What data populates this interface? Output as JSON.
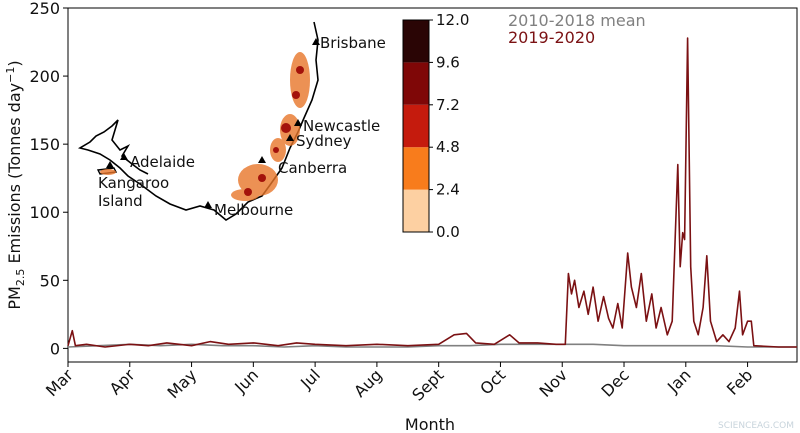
{
  "chart_data": {
    "type": "line",
    "ylabel": [
      "PM",
      "2.5",
      " Emissions (Tonnes day",
      "−1",
      ")"
    ],
    "xlabel": "Month",
    "xlim": [
      0,
      11.8
    ],
    "xticks": [
      {
        "value": 0,
        "label": "Mar"
      },
      {
        "value": 1,
        "label": "Apr"
      },
      {
        "value": 2,
        "label": "May"
      },
      {
        "value": 3,
        "label": "Jun"
      },
      {
        "value": 4,
        "label": "Jul"
      },
      {
        "value": 5,
        "label": "Aug"
      },
      {
        "value": 6,
        "label": "Sept"
      },
      {
        "value": 7,
        "label": "Oct"
      },
      {
        "value": 8,
        "label": "Nov"
      },
      {
        "value": 9,
        "label": "Dec"
      },
      {
        "value": 10,
        "label": "Jan"
      },
      {
        "value": 11,
        "label": "Feb"
      }
    ],
    "ylim": [
      -10,
      250
    ],
    "yticks": [
      0,
      50,
      100,
      150,
      200,
      250
    ],
    "series": [
      {
        "name": "2010-2018 mean",
        "color": "#808080",
        "x": [
          0,
          0.5,
          1,
          1.5,
          2,
          2.5,
          3,
          3.5,
          4,
          4.5,
          5,
          5.5,
          6,
          6.5,
          7,
          7.5,
          8,
          8.5,
          9,
          9.5,
          10,
          10.5,
          11,
          11.4,
          11.8
        ],
        "values": [
          1,
          2,
          3,
          2,
          3,
          2,
          2,
          1,
          2,
          1,
          1,
          1,
          2,
          2,
          3,
          3,
          3,
          3,
          2,
          2,
          2,
          2,
          1,
          1,
          1
        ]
      },
      {
        "name": "2019-2020",
        "color": "#7b1113",
        "x": [
          0,
          0.07,
          0.12,
          0.3,
          0.6,
          1,
          1.3,
          1.6,
          2,
          2.3,
          2.6,
          3,
          3.4,
          3.7,
          4,
          4.5,
          5,
          5.5,
          6,
          6.25,
          6.45,
          6.6,
          6.9,
          7.15,
          7.3,
          7.6,
          7.9,
          8.05,
          8.1,
          8.15,
          8.2,
          8.27,
          8.35,
          8.42,
          8.5,
          8.58,
          8.67,
          8.75,
          8.82,
          8.9,
          8.97,
          9.06,
          9.12,
          9.2,
          9.28,
          9.36,
          9.45,
          9.52,
          9.6,
          9.7,
          9.78,
          9.87,
          9.91,
          9.95,
          9.98,
          10.03,
          10.08,
          10.13,
          10.2,
          10.28,
          10.34,
          10.4,
          10.5,
          10.6,
          10.7,
          10.8,
          10.87,
          10.92,
          11,
          11.06,
          11.1,
          11.5,
          11.8
        ],
        "values": [
          2,
          13,
          2,
          3,
          1,
          3,
          2,
          4,
          2,
          5,
          3,
          4,
          2,
          4,
          3,
          2,
          3,
          2,
          3,
          10,
          11,
          4,
          3,
          10,
          4,
          4,
          3,
          3,
          55,
          40,
          50,
          30,
          42,
          25,
          45,
          20,
          38,
          22,
          15,
          33,
          15,
          70,
          45,
          30,
          55,
          20,
          40,
          15,
          30,
          10,
          20,
          135,
          60,
          85,
          80,
          228,
          60,
          20,
          10,
          30,
          68,
          20,
          5,
          10,
          5,
          15,
          42,
          10,
          20,
          20,
          2,
          1,
          1
        ]
      }
    ],
    "map": {
      "labels": [
        "Brisbane",
        "Newcastle",
        "Sydney",
        "Canberra",
        "Adelaide",
        "Kangaroo",
        "Island",
        "Melbourne"
      ]
    },
    "colorbar": {
      "ticks": [
        {
          "value": 0,
          "label": "0.0"
        },
        {
          "value": 2.4,
          "label": "2.4"
        },
        {
          "value": 4.8,
          "label": "4.8"
        },
        {
          "value": 7.2,
          "label": "7.2"
        },
        {
          "value": 9.6,
          "label": "9.6"
        },
        {
          "value": 12,
          "label": "12.0"
        }
      ],
      "colors": [
        "#fdd0a2",
        "#f87c1c",
        "#c51b0d",
        "#7f0707",
        "#2a0505"
      ]
    },
    "watermark": "SCIENCEAG.COM"
  }
}
